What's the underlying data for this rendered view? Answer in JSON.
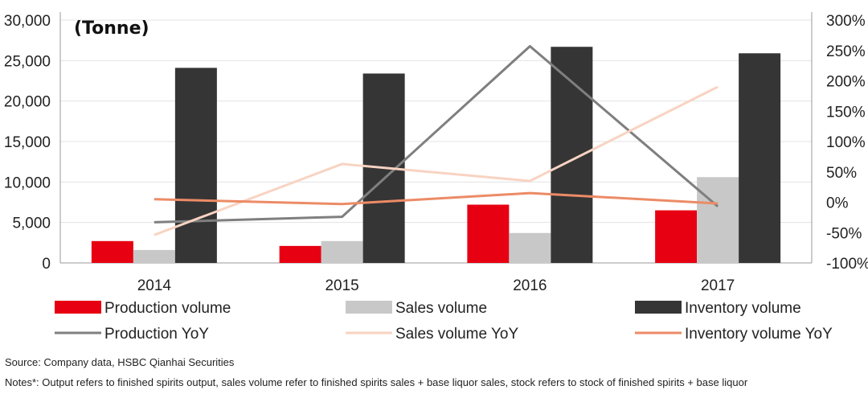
{
  "chart_data": {
    "type": "bar",
    "unit_label": "(Tonne)",
    "categories": [
      "2014",
      "2015",
      "2016",
      "2017"
    ],
    "bar_series": [
      {
        "name": "Production volume",
        "color": "#e60012",
        "values": [
          2700,
          2100,
          7200,
          6500
        ]
      },
      {
        "name": "Sales volume",
        "color": "#c8c8c8",
        "values": [
          1600,
          2700,
          3700,
          10600
        ]
      },
      {
        "name": "Inventory volume",
        "color": "#353535",
        "values": [
          24100,
          23400,
          26700,
          25900
        ]
      }
    ],
    "line_series": [
      {
        "name": "Production YoY",
        "color": "#7f7f7f",
        "values": [
          -33,
          -24,
          257,
          -7
        ]
      },
      {
        "name": "Sales volume YoY",
        "color": "#f8d3c2",
        "values": [
          -54,
          63,
          35,
          190
        ]
      },
      {
        "name": "Inventory volume YoY",
        "color": "#ec8b66",
        "values": [
          5,
          -3,
          15,
          -2
        ]
      }
    ],
    "y_left": {
      "min": 0,
      "max": 30000,
      "ticks": [
        "0",
        "5,000",
        "10,000",
        "15,000",
        "20,000",
        "25,000",
        "30,000"
      ]
    },
    "y_right": {
      "min": -100,
      "max": 300,
      "ticks": [
        "-100%",
        "-50%",
        "0%",
        "50%",
        "100%",
        "150%",
        "200%",
        "250%",
        "300%"
      ]
    },
    "legend_position": "bottom"
  },
  "source": "Source: Company data, HSBC Qianhai Securities",
  "notes": "Notes*: Output refers to finished spirits output, sales volume refer to finished spirits sales + base liquor sales, stock refers to stock of finished spirits + base liquor"
}
